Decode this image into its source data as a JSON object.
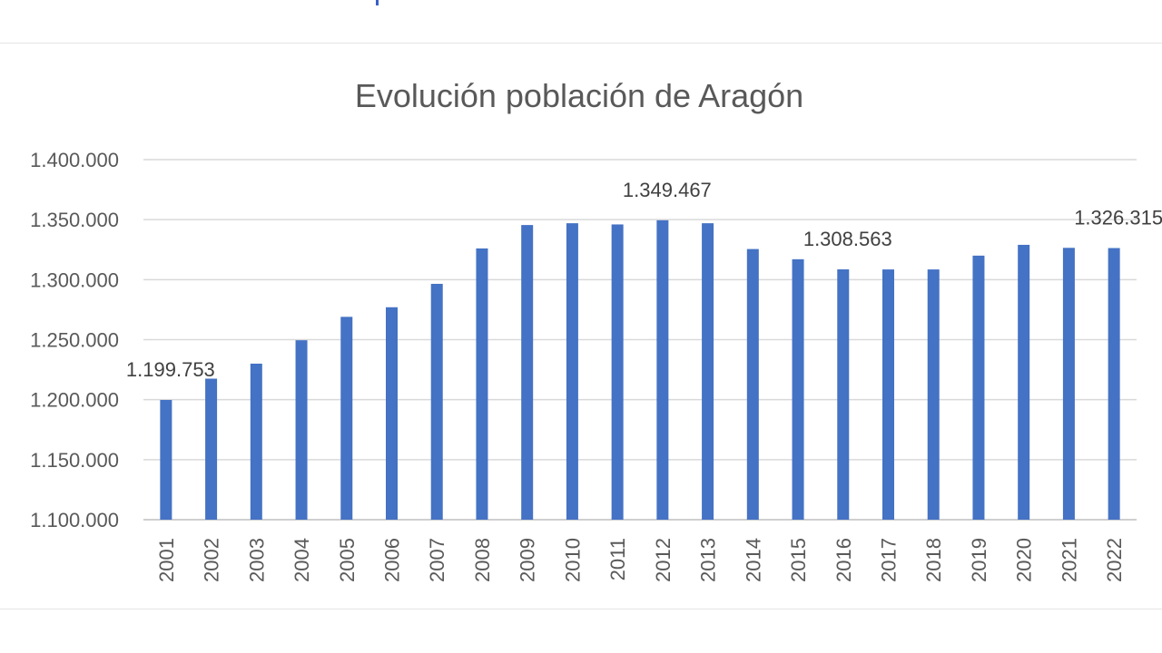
{
  "chart_data": {
    "type": "bar",
    "title": "Evolución población de Aragón",
    "xlabel": "",
    "ylabel": "",
    "ylim": [
      1100000,
      1400000
    ],
    "yticks": [
      "1.100.000",
      "1.150.000",
      "1.200.000",
      "1.250.000",
      "1.300.000",
      "1.350.000",
      "1.400.000"
    ],
    "categories": [
      "2001",
      "2002",
      "2003",
      "2004",
      "2005",
      "2006",
      "2007",
      "2008",
      "2009",
      "2010",
      "2011",
      "2012",
      "2013",
      "2014",
      "2015",
      "2016",
      "2017",
      "2018",
      "2019",
      "2020",
      "2021",
      "2022"
    ],
    "values": [
      1199753,
      1217500,
      1230000,
      1249500,
      1269000,
      1277000,
      1296500,
      1326000,
      1345500,
      1347000,
      1346000,
      1349467,
      1347000,
      1325500,
      1317000,
      1308563,
      1308500,
      1308500,
      1320000,
      1329000,
      1326500,
      1326315
    ],
    "data_labels": [
      {
        "category": "2001",
        "text": "1.199.753"
      },
      {
        "category": "2012",
        "text": "1.349.467"
      },
      {
        "category": "2016",
        "text": "1.308.563"
      },
      {
        "category": "2022",
        "text": "1.326.315"
      }
    ],
    "grid": true,
    "legend": "none",
    "bar_color": "#4472c4"
  }
}
